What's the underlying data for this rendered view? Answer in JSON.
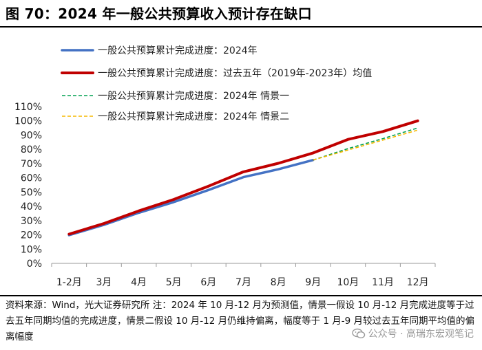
{
  "title": "图 70：2024 年一般公共预算收入预计存在缺口",
  "chart_data": {
    "type": "line",
    "categories": [
      "1-2月",
      "3月",
      "4月",
      "5月",
      "6月",
      "7月",
      "8月",
      "9月",
      "10月",
      "11月",
      "12月"
    ],
    "ylim": [
      0,
      110
    ],
    "yticks": [
      "0%",
      "10%",
      "20%",
      "30%",
      "40%",
      "50%",
      "60%",
      "70%",
      "80%",
      "90%",
      "100%",
      "110%"
    ],
    "series": [
      {
        "name": "一般公共预算累计完成进度：2024年",
        "color": "#4472C4",
        "style": "solid",
        "values": [
          19.8,
          27.0,
          35.5,
          43.0,
          51.5,
          60.5,
          66.0,
          72.5,
          null,
          null,
          null
        ]
      },
      {
        "name": "一般公共预算累计完成进度：过去五年（2019年-2023年）均值",
        "color": "#C00000",
        "style": "solid",
        "values": [
          20.5,
          28.0,
          36.8,
          44.8,
          54.2,
          64.2,
          70.2,
          77.5,
          87.0,
          92.5,
          100.0
        ]
      },
      {
        "name": "一般公共预算累计完成进度：2024年 情景一",
        "color": "#00A050",
        "style": "dashed",
        "values": [
          null,
          null,
          null,
          null,
          null,
          null,
          null,
          72.5,
          80.5,
          87.5,
          95.0
        ]
      },
      {
        "name": "一般公共预算累计完成进度：2024年 情景二",
        "color": "#F5B800",
        "style": "dashed",
        "values": [
          null,
          null,
          null,
          null,
          null,
          null,
          null,
          72.5,
          79.5,
          86.5,
          93.5
        ]
      }
    ]
  },
  "note": "资料来源：Wind，光大证券研究所    注：2024 年 10 月-12 月为预测值，情景一假设 10 月-12 月完成进度等于过去五年同期均值的完成进度，情景二假设 10 月-12 月仍维持偏离，幅度等于 1 月-9 月较过去五年同期平均值的偏离幅度",
  "watermark": "公众号 · 高瑞东宏观笔记"
}
